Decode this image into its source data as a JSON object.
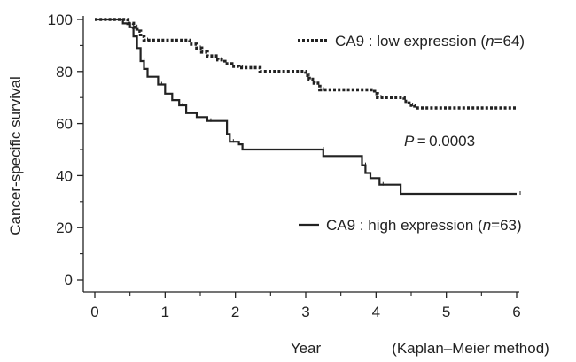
{
  "chart_data": {
    "type": "line",
    "subtype": "kaplan-meier step",
    "xlabel": "Year",
    "method_note": "(Kaplan–Meier method)",
    "ylabel": "Cancer-specific survival",
    "xlim": [
      0,
      6
    ],
    "ylim": [
      0,
      100
    ],
    "xticks": [
      0,
      1,
      2,
      3,
      4,
      5,
      6
    ],
    "yticks": [
      0,
      20,
      40,
      60,
      80,
      100
    ],
    "grid": false,
    "p_value": {
      "italic": "P",
      "rest": " = 0.0003"
    },
    "series": [
      {
        "name": "CA9 : low expression (n=64)",
        "legend_parts": [
          "CA9 : low expression (",
          "n",
          "=64)"
        ],
        "line_style": "dotted",
        "color": "#222222",
        "points": [
          [
            0,
            100
          ],
          [
            0.42,
            100
          ],
          [
            0.47,
            98.5
          ],
          [
            0.55,
            97
          ],
          [
            0.6,
            95.5
          ],
          [
            0.65,
            93.5
          ],
          [
            0.7,
            92
          ],
          [
            1.3,
            92
          ],
          [
            1.35,
            90.5
          ],
          [
            1.45,
            89
          ],
          [
            1.52,
            87.5
          ],
          [
            1.6,
            86
          ],
          [
            1.75,
            84.5
          ],
          [
            1.85,
            83
          ],
          [
            1.95,
            82
          ],
          [
            2.05,
            81.5
          ],
          [
            2.35,
            80
          ],
          [
            2.95,
            80
          ],
          [
            3.0,
            78.5
          ],
          [
            3.05,
            77
          ],
          [
            3.12,
            75.5
          ],
          [
            3.2,
            73
          ],
          [
            3.9,
            73
          ],
          [
            3.98,
            71.5
          ],
          [
            4.02,
            70
          ],
          [
            4.35,
            70
          ],
          [
            4.4,
            68.5
          ],
          [
            4.47,
            67
          ],
          [
            4.55,
            66
          ],
          [
            6,
            66
          ]
        ]
      },
      {
        "name": "CA9 : high expression (n=63)",
        "legend_parts": [
          "CA9 : high expression (",
          "n",
          "=63)"
        ],
        "line_style": "solid",
        "color": "#222222",
        "points": [
          [
            0,
            100
          ],
          [
            0.35,
            100
          ],
          [
            0.4,
            98.5
          ],
          [
            0.5,
            97
          ],
          [
            0.55,
            93.5
          ],
          [
            0.6,
            89
          ],
          [
            0.65,
            84
          ],
          [
            0.7,
            81
          ],
          [
            0.75,
            78
          ],
          [
            0.9,
            75
          ],
          [
            1.0,
            71.5
          ],
          [
            1.1,
            69
          ],
          [
            1.2,
            67
          ],
          [
            1.3,
            64
          ],
          [
            1.45,
            62.5
          ],
          [
            1.6,
            61
          ],
          [
            1.85,
            61
          ],
          [
            1.88,
            56
          ],
          [
            1.92,
            53
          ],
          [
            2.05,
            52
          ],
          [
            2.1,
            50
          ],
          [
            3.2,
            50
          ],
          [
            3.25,
            47.5
          ],
          [
            3.75,
            47.5
          ],
          [
            3.8,
            44
          ],
          [
            3.85,
            41
          ],
          [
            3.92,
            39
          ],
          [
            4.05,
            36.5
          ],
          [
            4.3,
            36.5
          ],
          [
            4.35,
            33
          ],
          [
            6,
            33
          ]
        ]
      }
    ]
  }
}
